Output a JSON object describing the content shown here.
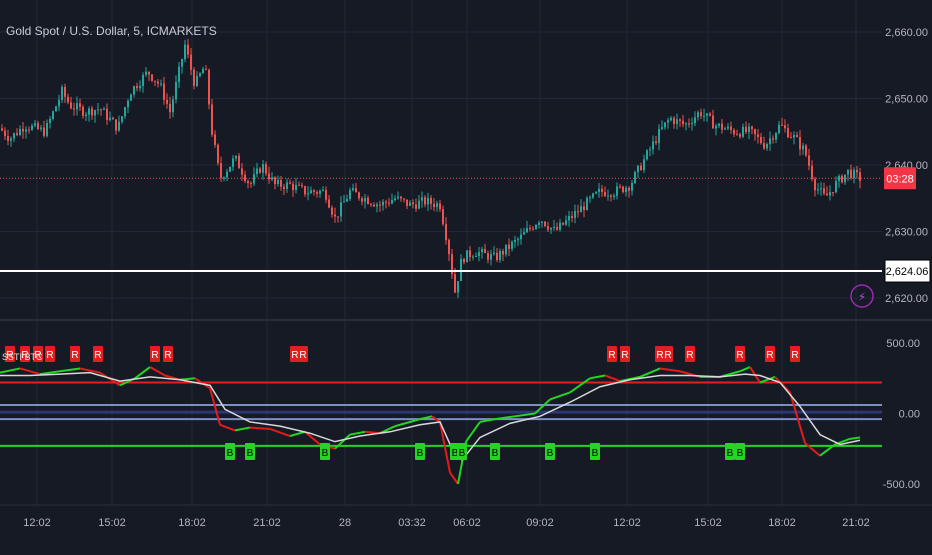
{
  "title": "Gold Spot / U.S. Dollar, 5, ICMARKETS",
  "indicator_label": "SSTI BTC",
  "colors": {
    "background": "#161a25",
    "grid": "#232836",
    "up": "#26a69a",
    "down": "#ef5350",
    "price_tag": "#f23645",
    "support_line": "#ffffff",
    "osc_green": "#22d622",
    "osc_red": "#e41b1b",
    "signal_line": "#d8d8d8",
    "upper_band": "#e02020",
    "lower_band": "#22d622",
    "mid_band": "#7e8ec8",
    "axis_text": "#b2b5be"
  },
  "chart_data": [
    {
      "type": "candlestick",
      "name": "price-pane",
      "title": "Gold Spot / U.S. Dollar, 5, ICMARKETS",
      "ylim": [
        2617,
        2663
      ],
      "y_ticks": [
        "2,660.00",
        "2,650.00",
        "2,640.00",
        "2,630.00",
        "2,620.00"
      ],
      "last_price_countdown": "03:28",
      "horizontal_line_label": "2,624.06",
      "horizontal_line_value": 2624.06,
      "price_path": [
        [
          0,
          2645.5
        ],
        [
          10,
          2644
        ],
        [
          25,
          2646
        ],
        [
          45,
          2645
        ],
        [
          62,
          2651
        ],
        [
          70,
          2649
        ],
        [
          85,
          2648
        ],
        [
          100,
          2648.5
        ],
        [
          118,
          2645.5
        ],
        [
          130,
          2651
        ],
        [
          148,
          2654
        ],
        [
          160,
          2652
        ],
        [
          170,
          2648
        ],
        [
          185,
          2658
        ],
        [
          195,
          2652
        ],
        [
          205,
          2655
        ],
        [
          212,
          2645
        ],
        [
          220,
          2638
        ],
        [
          235,
          2641
        ],
        [
          250,
          2637
        ],
        [
          262,
          2640
        ],
        [
          275,
          2637
        ],
        [
          290,
          2637
        ],
        [
          305,
          2636
        ],
        [
          325,
          2636
        ],
        [
          335,
          2632
        ],
        [
          350,
          2636
        ],
        [
          365,
          2635
        ],
        [
          380,
          2634
        ],
        [
          395,
          2635
        ],
        [
          410,
          2634
        ],
        [
          425,
          2634.5
        ],
        [
          440,
          2634
        ],
        [
          448,
          2628
        ],
        [
          455,
          2621
        ],
        [
          462,
          2626
        ],
        [
          475,
          2627
        ],
        [
          495,
          2626
        ],
        [
          520,
          2629
        ],
        [
          540,
          2632
        ],
        [
          555,
          2630
        ],
        [
          570,
          2632
        ],
        [
          585,
          2634
        ],
        [
          600,
          2636
        ],
        [
          615,
          2636
        ],
        [
          630,
          2637
        ],
        [
          645,
          2641
        ],
        [
          660,
          2645
        ],
        [
          670,
          2647
        ],
        [
          685,
          2646
        ],
        [
          700,
          2648
        ],
        [
          715,
          2646
        ],
        [
          735,
          2645
        ],
        [
          750,
          2645
        ],
        [
          765,
          2643
        ],
        [
          780,
          2646
        ],
        [
          795,
          2644
        ],
        [
          805,
          2642
        ],
        [
          815,
          2637
        ],
        [
          825,
          2635
        ],
        [
          835,
          2637
        ],
        [
          848,
          2639
        ],
        [
          860,
          2638
        ]
      ]
    },
    {
      "type": "line",
      "name": "oscillator-pane",
      "ylim": [
        -650,
        650
      ],
      "y_ticks": [
        "500.00",
        "0.00",
        "-500.00"
      ],
      "bands": {
        "upper": 220,
        "lower": -230,
        "mid_high": 60,
        "mid_low": -40
      },
      "x_ticks": [
        "12:02",
        "15:02",
        "18:02",
        "21:02",
        "28",
        "03:32",
        "06:02",
        "09:02",
        "12:02",
        "15:02",
        "18:02",
        "21:02"
      ],
      "x_tick_positions": [
        37,
        112,
        192,
        267,
        345,
        412,
        467,
        540,
        627,
        708,
        782,
        856
      ],
      "oscillator": [
        [
          0,
          290
        ],
        [
          20,
          320
        ],
        [
          40,
          280
        ],
        [
          60,
          300
        ],
        [
          80,
          320
        ],
        [
          100,
          290
        ],
        [
          120,
          200
        ],
        [
          135,
          250
        ],
        [
          150,
          330
        ],
        [
          165,
          270
        ],
        [
          180,
          240
        ],
        [
          195,
          250
        ],
        [
          210,
          180
        ],
        [
          220,
          -80
        ],
        [
          235,
          -120
        ],
        [
          250,
          -100
        ],
        [
          270,
          -110
        ],
        [
          290,
          -160
        ],
        [
          305,
          -130
        ],
        [
          320,
          -220
        ],
        [
          335,
          -250
        ],
        [
          350,
          -150
        ],
        [
          365,
          -130
        ],
        [
          380,
          -140
        ],
        [
          395,
          -90
        ],
        [
          405,
          -70
        ],
        [
          420,
          -40
        ],
        [
          432,
          -20
        ],
        [
          440,
          -60
        ],
        [
          450,
          -420
        ],
        [
          458,
          -500
        ],
        [
          466,
          -200
        ],
        [
          480,
          -60
        ],
        [
          495,
          -40
        ],
        [
          515,
          -20
        ],
        [
          535,
          0
        ],
        [
          550,
          100
        ],
        [
          570,
          150
        ],
        [
          590,
          250
        ],
        [
          605,
          270
        ],
        [
          620,
          230
        ],
        [
          640,
          260
        ],
        [
          660,
          320
        ],
        [
          680,
          300
        ],
        [
          700,
          260
        ],
        [
          720,
          260
        ],
        [
          740,
          300
        ],
        [
          750,
          330
        ],
        [
          760,
          220
        ],
        [
          775,
          260
        ],
        [
          790,
          150
        ],
        [
          805,
          -210
        ],
        [
          820,
          -300
        ],
        [
          835,
          -220
        ],
        [
          850,
          -180
        ],
        [
          860,
          -170
        ]
      ],
      "signal": [
        [
          0,
          270
        ],
        [
          30,
          270
        ],
        [
          60,
          280
        ],
        [
          90,
          290
        ],
        [
          120,
          230
        ],
        [
          150,
          260
        ],
        [
          180,
          240
        ],
        [
          210,
          200
        ],
        [
          225,
          30
        ],
        [
          250,
          -60
        ],
        [
          280,
          -90
        ],
        [
          310,
          -140
        ],
        [
          335,
          -200
        ],
        [
          360,
          -160
        ],
        [
          390,
          -130
        ],
        [
          420,
          -80
        ],
        [
          440,
          -60
        ],
        [
          452,
          -250
        ],
        [
          462,
          -330
        ],
        [
          480,
          -170
        ],
        [
          510,
          -70
        ],
        [
          540,
          -20
        ],
        [
          570,
          80
        ],
        [
          600,
          190
        ],
        [
          630,
          240
        ],
        [
          660,
          270
        ],
        [
          690,
          270
        ],
        [
          720,
          260
        ],
        [
          745,
          280
        ],
        [
          760,
          270
        ],
        [
          780,
          220
        ],
        [
          800,
          50
        ],
        [
          820,
          -150
        ],
        [
          840,
          -220
        ],
        [
          860,
          -190
        ]
      ],
      "sell_signals": [
        10,
        25,
        38,
        50,
        75,
        98,
        155,
        168,
        295,
        303,
        612,
        625,
        660,
        668,
        690,
        740,
        770,
        795
      ],
      "sell_label": "R",
      "buy_signals": [
        230,
        250,
        325,
        420,
        455,
        462,
        495,
        550,
        595,
        730,
        740
      ],
      "buy_label": "B"
    }
  ]
}
